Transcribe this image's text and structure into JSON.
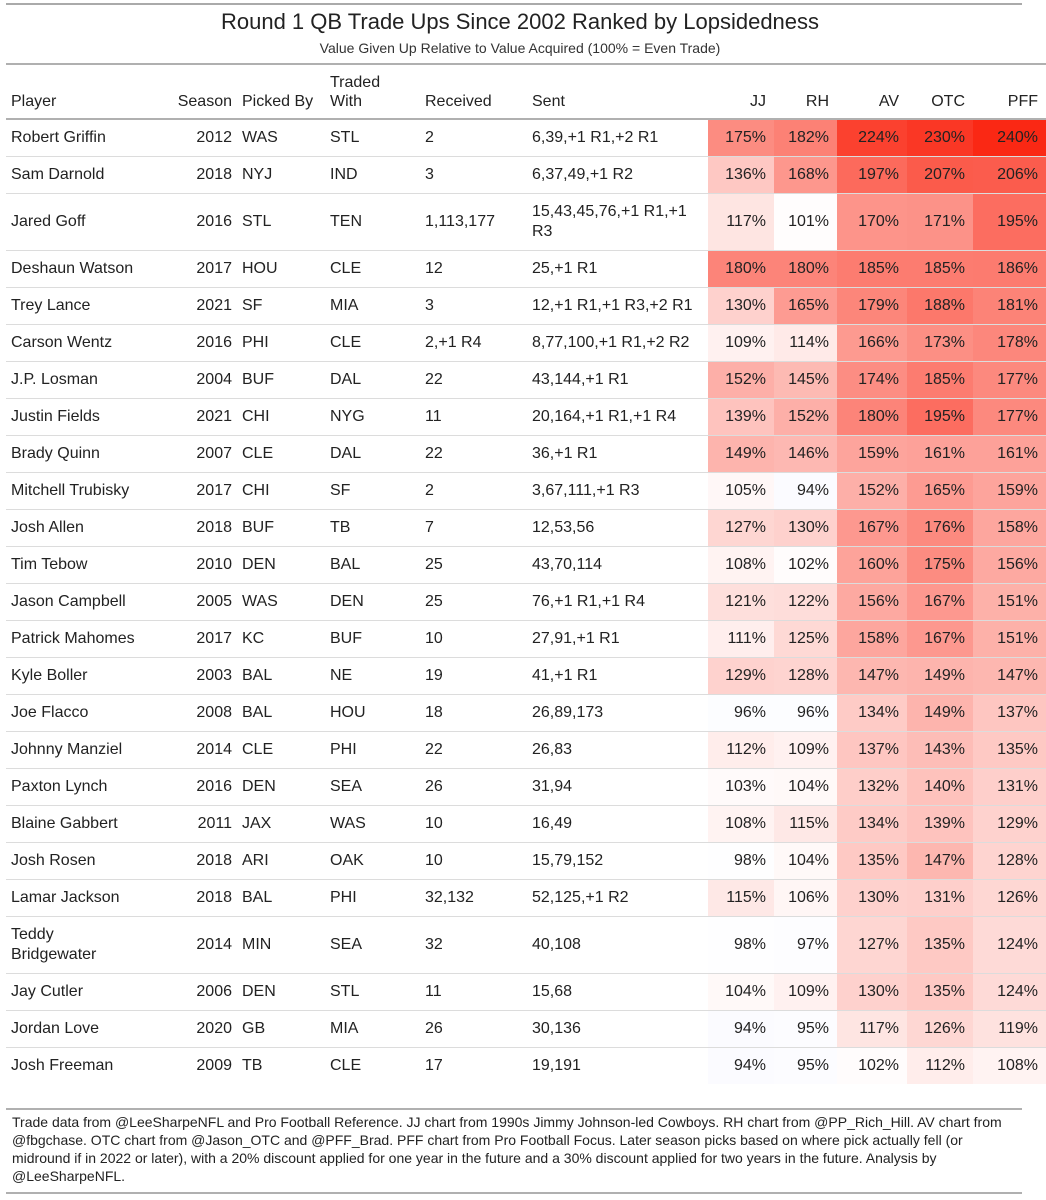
{
  "title": "Round 1 QB Trade Ups Since 2002 Ranked by Lopsidedness",
  "subtitle": "Value Given Up Relative to Value Acquired (100% = Even Trade)",
  "headers": {
    "player": "Player",
    "season": "Season",
    "picked_by": "Picked By",
    "traded_with": "Traded With",
    "received": "Received",
    "sent": "Sent",
    "jj": "JJ",
    "rh": "RH",
    "av": "AV",
    "otc": "OTC",
    "pff": "PFF"
  },
  "rows": [
    {
      "player": "Robert Griffin",
      "season": "2012",
      "picked_by": "WAS",
      "traded_with": "STL",
      "received": "2",
      "sent": "6,39,+1 R1,+2 R1",
      "jj": "175%",
      "rh": "182%",
      "av": "224%",
      "otc": "230%",
      "pff": "240%"
    },
    {
      "player": "Sam Darnold",
      "season": "2018",
      "picked_by": "NYJ",
      "traded_with": "IND",
      "received": "3",
      "sent": "6,37,49,+1 R2",
      "jj": "136%",
      "rh": "168%",
      "av": "197%",
      "otc": "207%",
      "pff": "206%"
    },
    {
      "player": "Jared Goff",
      "season": "2016",
      "picked_by": "STL",
      "traded_with": "TEN",
      "received": "1,113,177",
      "sent": "15,43,45,76,+1 R1,+1 R3",
      "jj": "117%",
      "rh": "101%",
      "av": "170%",
      "otc": "171%",
      "pff": "195%"
    },
    {
      "player": "Deshaun Watson",
      "season": "2017",
      "picked_by": "HOU",
      "traded_with": "CLE",
      "received": "12",
      "sent": "25,+1 R1",
      "jj": "180%",
      "rh": "180%",
      "av": "185%",
      "otc": "185%",
      "pff": "186%"
    },
    {
      "player": "Trey Lance",
      "season": "2021",
      "picked_by": "SF",
      "traded_with": "MIA",
      "received": "3",
      "sent": "12,+1 R1,+1 R3,+2 R1",
      "jj": "130%",
      "rh": "165%",
      "av": "179%",
      "otc": "188%",
      "pff": "181%"
    },
    {
      "player": "Carson Wentz",
      "season": "2016",
      "picked_by": "PHI",
      "traded_with": "CLE",
      "received": "2,+1 R4",
      "sent": "8,77,100,+1 R1,+2 R2",
      "jj": "109%",
      "rh": "114%",
      "av": "166%",
      "otc": "173%",
      "pff": "178%"
    },
    {
      "player": "J.P. Losman",
      "season": "2004",
      "picked_by": "BUF",
      "traded_with": "DAL",
      "received": "22",
      "sent": "43,144,+1 R1",
      "jj": "152%",
      "rh": "145%",
      "av": "174%",
      "otc": "185%",
      "pff": "177%"
    },
    {
      "player": "Justin Fields",
      "season": "2021",
      "picked_by": "CHI",
      "traded_with": "NYG",
      "received": "11",
      "sent": "20,164,+1 R1,+1 R4",
      "jj": "139%",
      "rh": "152%",
      "av": "180%",
      "otc": "195%",
      "pff": "177%"
    },
    {
      "player": "Brady Quinn",
      "season": "2007",
      "picked_by": "CLE",
      "traded_with": "DAL",
      "received": "22",
      "sent": "36,+1 R1",
      "jj": "149%",
      "rh": "146%",
      "av": "159%",
      "otc": "161%",
      "pff": "161%"
    },
    {
      "player": "Mitchell Trubisky",
      "season": "2017",
      "picked_by": "CHI",
      "traded_with": "SF",
      "received": "2",
      "sent": "3,67,111,+1 R3",
      "jj": "105%",
      "rh": "94%",
      "av": "152%",
      "otc": "165%",
      "pff": "159%"
    },
    {
      "player": "Josh Allen",
      "season": "2018",
      "picked_by": "BUF",
      "traded_with": "TB",
      "received": "7",
      "sent": "12,53,56",
      "jj": "127%",
      "rh": "130%",
      "av": "167%",
      "otc": "176%",
      "pff": "158%"
    },
    {
      "player": "Tim Tebow",
      "season": "2010",
      "picked_by": "DEN",
      "traded_with": "BAL",
      "received": "25",
      "sent": "43,70,114",
      "jj": "108%",
      "rh": "102%",
      "av": "160%",
      "otc": "175%",
      "pff": "156%"
    },
    {
      "player": "Jason Campbell",
      "season": "2005",
      "picked_by": "WAS",
      "traded_with": "DEN",
      "received": "25",
      "sent": "76,+1 R1,+1 R4",
      "jj": "121%",
      "rh": "122%",
      "av": "156%",
      "otc": "167%",
      "pff": "151%"
    },
    {
      "player": "Patrick Mahomes",
      "season": "2017",
      "picked_by": "KC",
      "traded_with": "BUF",
      "received": "10",
      "sent": "27,91,+1 R1",
      "jj": "111%",
      "rh": "125%",
      "av": "158%",
      "otc": "167%",
      "pff": "151%"
    },
    {
      "player": "Kyle Boller",
      "season": "2003",
      "picked_by": "BAL",
      "traded_with": "NE",
      "received": "19",
      "sent": "41,+1 R1",
      "jj": "129%",
      "rh": "128%",
      "av": "147%",
      "otc": "149%",
      "pff": "147%"
    },
    {
      "player": "Joe Flacco",
      "season": "2008",
      "picked_by": "BAL",
      "traded_with": "HOU",
      "received": "18",
      "sent": "26,89,173",
      "jj": "96%",
      "rh": "96%",
      "av": "134%",
      "otc": "149%",
      "pff": "137%"
    },
    {
      "player": "Johnny Manziel",
      "season": "2014",
      "picked_by": "CLE",
      "traded_with": "PHI",
      "received": "22",
      "sent": "26,83",
      "jj": "112%",
      "rh": "109%",
      "av": "137%",
      "otc": "143%",
      "pff": "135%"
    },
    {
      "player": "Paxton Lynch",
      "season": "2016",
      "picked_by": "DEN",
      "traded_with": "SEA",
      "received": "26",
      "sent": "31,94",
      "jj": "103%",
      "rh": "104%",
      "av": "132%",
      "otc": "140%",
      "pff": "131%"
    },
    {
      "player": "Blaine Gabbert",
      "season": "2011",
      "picked_by": "JAX",
      "traded_with": "WAS",
      "received": "10",
      "sent": "16,49",
      "jj": "108%",
      "rh": "115%",
      "av": "134%",
      "otc": "139%",
      "pff": "129%"
    },
    {
      "player": "Josh Rosen",
      "season": "2018",
      "picked_by": "ARI",
      "traded_with": "OAK",
      "received": "10",
      "sent": "15,79,152",
      "jj": "98%",
      "rh": "104%",
      "av": "135%",
      "otc": "147%",
      "pff": "128%"
    },
    {
      "player": "Lamar Jackson",
      "season": "2018",
      "picked_by": "BAL",
      "traded_with": "PHI",
      "received": "32,132",
      "sent": "52,125,+1 R2",
      "jj": "115%",
      "rh": "106%",
      "av": "130%",
      "otc": "131%",
      "pff": "126%"
    },
    {
      "player": "Teddy Bridgewater",
      "season": "2014",
      "picked_by": "MIN",
      "traded_with": "SEA",
      "received": "32",
      "sent": "40,108",
      "jj": "98%",
      "rh": "97%",
      "av": "127%",
      "otc": "135%",
      "pff": "124%"
    },
    {
      "player": "Jay Cutler",
      "season": "2006",
      "picked_by": "DEN",
      "traded_with": "STL",
      "received": "11",
      "sent": "15,68",
      "jj": "104%",
      "rh": "109%",
      "av": "130%",
      "otc": "135%",
      "pff": "124%"
    },
    {
      "player": "Jordan Love",
      "season": "2020",
      "picked_by": "GB",
      "traded_with": "MIA",
      "received": "26",
      "sent": "30,136",
      "jj": "94%",
      "rh": "95%",
      "av": "117%",
      "otc": "126%",
      "pff": "119%"
    },
    {
      "player": "Josh Freeman",
      "season": "2009",
      "picked_by": "TB",
      "traded_with": "CLE",
      "received": "17",
      "sent": "19,191",
      "jj": "94%",
      "rh": "95%",
      "av": "102%",
      "otc": "112%",
      "pff": "108%"
    }
  ],
  "footer": "Trade data from @LeeSharpeNFL and Pro Football Reference. JJ chart from 1990s Jimmy Johnson-led Cowboys. RH chart from @PP_Rich_Hill. AV chart from @fbgchase. OTC chart from @Jason_OTC and @PFF_Brad. PFF chart from Pro Football Focus. Later season picks based on where pick actually fell (or midround if in 2022 or later), with a 20% discount applied for one year in the future and a 30% discount applied for two years in the future. Analysis by @LeeSharpeNFL."
}
